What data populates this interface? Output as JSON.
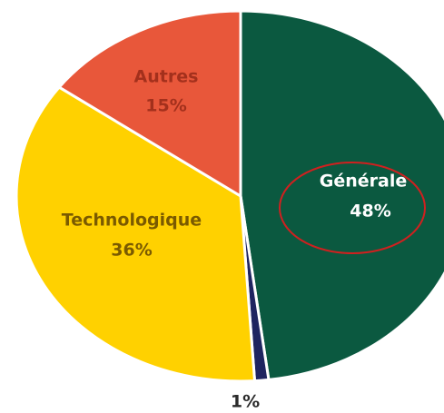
{
  "chart_data": {
    "type": "pie",
    "categories": [
      "Générale",
      null,
      "Technologique",
      "Autres"
    ],
    "values": [
      48,
      1,
      36,
      15
    ],
    "value_labels": [
      "48%",
      "1%",
      "36%",
      "15%"
    ],
    "colors": [
      "#0b5940",
      "#1e2460",
      "#ffd100",
      "#e8573a"
    ]
  }
}
